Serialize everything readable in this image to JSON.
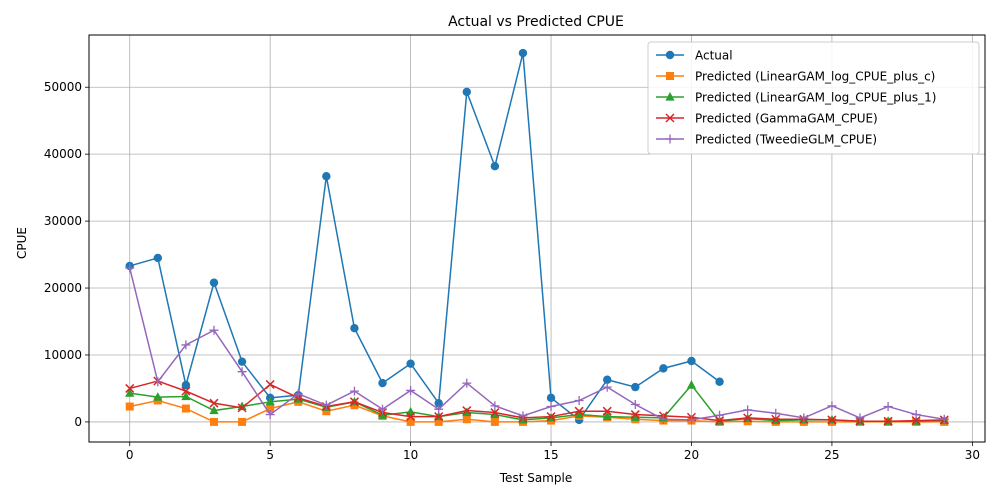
{
  "chart_data": {
    "type": "line",
    "title": "Actual vs Predicted CPUE",
    "xlabel": "Test Sample",
    "ylabel": "CPUE",
    "xlim": [
      -1.45,
      30.45
    ],
    "ylim": [
      -3000,
      57800
    ],
    "xticks": [
      0,
      5,
      10,
      15,
      20,
      25,
      30
    ],
    "yticks": [
      0,
      10000,
      20000,
      30000,
      40000,
      50000
    ],
    "grid": true,
    "legend_position": "top-right",
    "series": [
      {
        "name": "Actual",
        "color": "#1f77b4",
        "marker": "circle",
        "x": [
          0,
          1,
          2,
          3,
          4,
          5,
          6,
          7,
          8,
          9,
          10,
          11,
          12,
          13,
          14,
          15,
          16,
          17,
          18,
          19,
          20,
          21
        ],
        "values": [
          23300,
          24500,
          5500,
          20800,
          9000,
          3600,
          4000,
          36700,
          14000,
          5800,
          8700,
          2800,
          49300,
          38200,
          55100,
          3600,
          300,
          6300,
          5200,
          8000,
          9100,
          6000
        ]
      },
      {
        "name": "Predicted (LinearGAM_log_CPUE_plus_c)",
        "color": "#ff7f0e",
        "marker": "square",
        "x": [
          0,
          1,
          2,
          3,
          4,
          5,
          6,
          7,
          8,
          9,
          10,
          11,
          12,
          13,
          14,
          15,
          16,
          17,
          18,
          19,
          20,
          21,
          22,
          23,
          24,
          25,
          26,
          27,
          28,
          29
        ],
        "values": [
          2300,
          3200,
          2000,
          0,
          0,
          2000,
          3000,
          1600,
          2500,
          900,
          0,
          0,
          400,
          0,
          0,
          200,
          900,
          700,
          400,
          200,
          200,
          0,
          100,
          0,
          0,
          0,
          0,
          0,
          0,
          0
        ]
      },
      {
        "name": "Predicted (LinearGAM_log_CPUE_plus_1)",
        "color": "#2ca02c",
        "marker": "triangle",
        "x": [
          0,
          1,
          2,
          3,
          4,
          5,
          6,
          7,
          8,
          9,
          10,
          11,
          12,
          13,
          14,
          15,
          16,
          17,
          18,
          19,
          20,
          21,
          22,
          23,
          24,
          25,
          26,
          27,
          28,
          29
        ],
        "values": [
          4300,
          3700,
          3800,
          1700,
          2300,
          3000,
          3400,
          2200,
          3000,
          1000,
          1500,
          800,
          1400,
          1100,
          300,
          600,
          1100,
          800,
          700,
          600,
          5500,
          100,
          500,
          200,
          300,
          300,
          100,
          100,
          100,
          200
        ]
      },
      {
        "name": "Predicted (GammaGAM_CPUE)",
        "color": "#d62728",
        "marker": "x",
        "x": [
          0,
          1,
          2,
          3,
          4,
          5,
          6,
          7,
          8,
          9,
          10,
          11,
          12,
          13,
          14,
          15,
          16,
          17,
          18,
          19,
          20,
          21,
          22,
          23,
          24,
          25,
          26,
          27,
          28,
          29
        ],
        "values": [
          5000,
          6100,
          4600,
          2800,
          2100,
          5600,
          3600,
          2300,
          3000,
          1400,
          800,
          800,
          1700,
          1400,
          600,
          800,
          1600,
          1600,
          1100,
          900,
          700,
          200,
          600,
          400,
          400,
          300,
          100,
          100,
          200,
          300
        ]
      },
      {
        "name": "Predicted (TweedieGLM_CPUE)",
        "color": "#9467bd",
        "marker": "plus",
        "x": [
          0,
          1,
          2,
          3,
          4,
          5,
          6,
          7,
          8,
          9,
          10,
          11,
          12,
          13,
          14,
          15,
          16,
          17,
          18,
          19,
          20,
          21,
          22,
          23,
          24,
          25,
          26,
          27,
          28,
          29
        ],
        "values": [
          23000,
          6000,
          11500,
          13700,
          7500,
          1100,
          4200,
          2500,
          4600,
          1900,
          4700,
          1900,
          5800,
          2400,
          900,
          2300,
          3200,
          5200,
          2600,
          400,
          300,
          1000,
          1800,
          1300,
          600,
          2400,
          600,
          2300,
          1100,
          400
        ]
      }
    ]
  }
}
